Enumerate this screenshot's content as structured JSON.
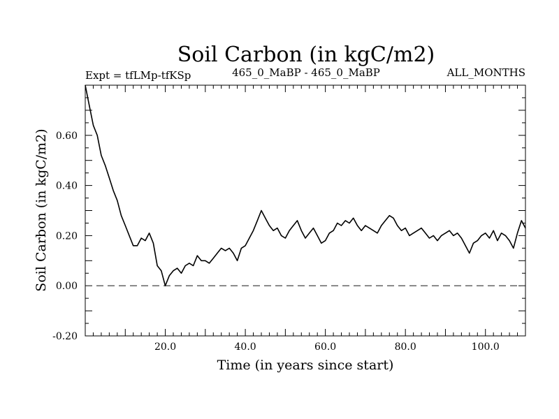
{
  "chart_data": {
    "type": "line",
    "title": "Soil Carbon (in kgC/m2)",
    "subtitle_left": "Expt = tfLMp-tfKSp",
    "subtitle_center": "465_0_MaBP - 465_0_MaBP",
    "subtitle_right": "ALL_MONTHS",
    "xlabel": "Time (in years since start)",
    "ylabel": "Soil Carbon (in kgC/m2)",
    "xlim": [
      0,
      110
    ],
    "ylim": [
      -0.2,
      0.8
    ],
    "x_ticks": [
      20,
      40,
      60,
      80,
      100
    ],
    "x_tick_labels": [
      "20.0",
      "40.0",
      "60.0",
      "80.0",
      "100.0"
    ],
    "y_ticks": [
      -0.2,
      0,
      0.2,
      0.4,
      0.6
    ],
    "y_tick_labels": [
      "-0.20",
      "0.00",
      "0.20",
      "0.40",
      "0.60"
    ],
    "reference_line": {
      "y": 0,
      "style": "dashed"
    },
    "series": [
      {
        "name": "Soil Carbon",
        "x": [
          0,
          1,
          2,
          3,
          4,
          5,
          6,
          7,
          8,
          9,
          10,
          11,
          12,
          13,
          14,
          15,
          16,
          17,
          18,
          19,
          20,
          21,
          22,
          23,
          24,
          25,
          26,
          27,
          28,
          29,
          30,
          31,
          32,
          33,
          34,
          35,
          36,
          37,
          38,
          39,
          40,
          41,
          42,
          43,
          44,
          45,
          46,
          47,
          48,
          49,
          50,
          51,
          52,
          53,
          54,
          55,
          56,
          57,
          58,
          59,
          60,
          61,
          62,
          63,
          64,
          65,
          66,
          67,
          68,
          69,
          70,
          71,
          72,
          73,
          74,
          75,
          76,
          77,
          78,
          79,
          80,
          81,
          82,
          83,
          84,
          85,
          86,
          87,
          88,
          89,
          90,
          91,
          92,
          93,
          94,
          95,
          96,
          97,
          98,
          99,
          100,
          101,
          102,
          103,
          104,
          105,
          106,
          107,
          108,
          109,
          110
        ],
        "values": [
          0.8,
          0.72,
          0.64,
          0.6,
          0.52,
          0.48,
          0.43,
          0.38,
          0.34,
          0.28,
          0.24,
          0.2,
          0.16,
          0.16,
          0.19,
          0.18,
          0.21,
          0.17,
          0.08,
          0.06,
          0.0,
          0.04,
          0.06,
          0.07,
          0.05,
          0.08,
          0.09,
          0.08,
          0.12,
          0.1,
          0.1,
          0.09,
          0.11,
          0.13,
          0.15,
          0.14,
          0.15,
          0.13,
          0.1,
          0.15,
          0.16,
          0.19,
          0.22,
          0.26,
          0.3,
          0.27,
          0.24,
          0.22,
          0.23,
          0.2,
          0.19,
          0.22,
          0.24,
          0.26,
          0.22,
          0.19,
          0.21,
          0.23,
          0.2,
          0.17,
          0.18,
          0.21,
          0.22,
          0.25,
          0.24,
          0.26,
          0.25,
          0.27,
          0.24,
          0.22,
          0.24,
          0.23,
          0.22,
          0.21,
          0.24,
          0.26,
          0.28,
          0.27,
          0.24,
          0.22,
          0.23,
          0.2,
          0.21,
          0.22,
          0.23,
          0.21,
          0.19,
          0.2,
          0.18,
          0.2,
          0.21,
          0.22,
          0.2,
          0.21,
          0.19,
          0.16,
          0.13,
          0.17,
          0.18,
          0.2,
          0.21,
          0.19,
          0.22,
          0.18,
          0.21,
          0.2,
          0.18,
          0.15,
          0.21,
          0.26,
          0.23
        ]
      }
    ]
  }
}
